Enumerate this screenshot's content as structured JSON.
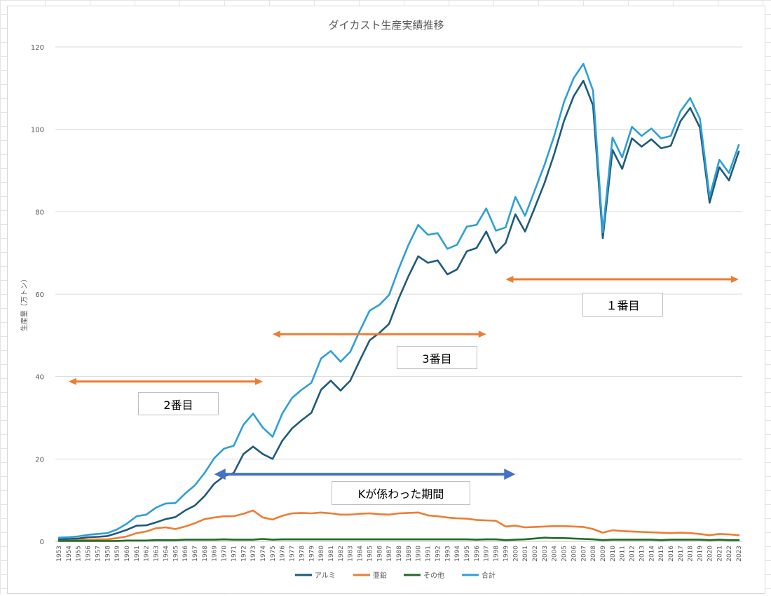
{
  "chart_data": {
    "type": "line",
    "title": "ダイカスト生産実績推移",
    "ylabel": "生産量（万トン）",
    "xlabel": "",
    "ylim": [
      0,
      120
    ],
    "yticks": [
      0,
      20,
      40,
      60,
      80,
      100,
      120
    ],
    "grid": true,
    "legend_position": "bottom",
    "x": [
      "1953",
      "1954",
      "1955",
      "1956",
      "1957",
      "1958",
      "1959",
      "1960",
      "1961",
      "1962",
      "1963",
      "1964",
      "1965",
      "1966",
      "1967",
      "1968",
      "1969",
      "1970",
      "1971",
      "1972",
      "1973",
      "1974",
      "1975",
      "1976",
      "1977",
      "1978",
      "1979",
      "1980",
      "1981",
      "1982",
      "1983",
      "1984",
      "1985",
      "1986",
      "1987",
      "1988",
      "1989",
      "1990",
      "1991",
      "1992",
      "1993",
      "1994",
      "1995",
      "1996",
      "1997",
      "1998",
      "1999",
      "2000",
      "2001",
      "2002",
      "2003",
      "2004",
      "2005",
      "2006",
      "2007",
      "2008",
      "2009",
      "2010",
      "2011",
      "2012",
      "2013",
      "2014",
      "2015",
      "2016",
      "2017",
      "2018",
      "2019",
      "2020",
      "2021",
      "2022",
      "2023"
    ],
    "series": [
      {
        "name": "アルミ",
        "color": "#1f5a7a",
        "values": [
          0.5,
          0.6,
          0.7,
          1.0,
          1.1,
          1.3,
          2.0,
          2.8,
          3.8,
          3.9,
          4.6,
          5.4,
          5.9,
          7.5,
          8.7,
          11.0,
          14.0,
          15.8,
          16.6,
          21.2,
          23.0,
          21.2,
          20.0,
          24.4,
          27.4,
          29.4,
          31.2,
          36.8,
          39.0,
          36.6,
          39.0,
          44.0,
          48.8,
          50.6,
          52.8,
          59.0,
          64.4,
          69.2,
          67.6,
          68.2,
          64.8,
          66.0,
          70.4,
          71.2,
          75.2,
          70.0,
          72.4,
          79.4,
          75.2,
          81.0,
          87.0,
          94.0,
          102.0,
          108.0,
          111.8,
          105.8,
          73.6,
          95.0,
          90.4,
          97.8,
          95.8,
          97.6,
          95.4,
          96.0,
          102.0,
          105.2,
          100.4,
          82.2,
          90.8,
          87.6,
          94.6
        ]
      },
      {
        "name": "亜鉛",
        "color": "#ed7d31",
        "values": [
          0.3,
          0.3,
          0.4,
          0.4,
          0.5,
          0.5,
          0.8,
          1.2,
          2.0,
          2.4,
          3.2,
          3.4,
          3.0,
          3.6,
          4.4,
          5.4,
          5.8,
          6.1,
          6.1,
          6.7,
          7.5,
          5.8,
          5.3,
          6.2,
          6.8,
          6.9,
          6.8,
          7.0,
          6.8,
          6.5,
          6.5,
          6.7,
          6.8,
          6.6,
          6.5,
          6.8,
          6.9,
          7.0,
          6.3,
          6.1,
          5.8,
          5.6,
          5.5,
          5.2,
          5.1,
          5.0,
          3.6,
          3.8,
          3.4,
          3.5,
          3.6,
          3.7,
          3.7,
          3.6,
          3.5,
          3.0,
          2.1,
          2.7,
          2.5,
          2.4,
          2.3,
          2.2,
          2.1,
          2.0,
          2.1,
          2.0,
          1.8,
          1.5,
          1.8,
          1.7,
          1.5
        ]
      },
      {
        "name": "その他",
        "color": "#1e6b23",
        "values": [
          0.1,
          0.1,
          0.1,
          0.1,
          0.1,
          0.1,
          0.1,
          0.2,
          0.2,
          0.2,
          0.3,
          0.3,
          0.3,
          0.4,
          0.4,
          0.4,
          0.4,
          0.5,
          0.4,
          0.4,
          0.4,
          0.6,
          0.4,
          0.5,
          0.5,
          0.5,
          0.5,
          0.5,
          0.5,
          0.5,
          0.5,
          0.5,
          0.5,
          0.5,
          0.5,
          0.5,
          0.5,
          0.5,
          0.5,
          0.5,
          0.5,
          0.5,
          0.5,
          0.4,
          0.5,
          0.5,
          0.3,
          0.4,
          0.5,
          0.7,
          0.9,
          0.8,
          0.8,
          0.7,
          0.6,
          0.5,
          0.3,
          0.4,
          0.4,
          0.4,
          0.4,
          0.4,
          0.3,
          0.4,
          0.4,
          0.4,
          0.4,
          0.3,
          0.4,
          0.3,
          0.3
        ]
      },
      {
        "name": "合計",
        "color": "#2e9fd6",
        "values": [
          0.9,
          1.0,
          1.2,
          1.6,
          1.8,
          2.0,
          2.9,
          4.3,
          6.1,
          6.5,
          8.2,
          9.2,
          9.3,
          11.6,
          13.6,
          16.6,
          20.2,
          22.5,
          23.2,
          28.3,
          31.0,
          27.6,
          25.4,
          31.0,
          34.8,
          36.8,
          38.5,
          44.4,
          46.2,
          43.6,
          46.0,
          51.2,
          56.0,
          57.4,
          59.8,
          66.2,
          72.0,
          76.8,
          74.4,
          74.8,
          71.0,
          72.0,
          76.4,
          76.8,
          80.8,
          75.4,
          76.2,
          83.6,
          79.0,
          85.2,
          91.4,
          98.4,
          106.6,
          112.4,
          115.9,
          109.4,
          75.0,
          98.0,
          93.2,
          100.6,
          98.4,
          100.2,
          97.8,
          98.4,
          104.4,
          107.6,
          102.6,
          83.6,
          92.6,
          89.4,
          96.2
        ]
      }
    ],
    "annotations": [
      {
        "label": "１番目",
        "from": "1999",
        "to": "2023",
        "level": 63.6,
        "color": "#ed7d31"
      },
      {
        "label": "3番目",
        "from": "1975",
        "to": "1997",
        "level": 50.3,
        "color": "#ed7d31"
      },
      {
        "label": "2番目",
        "from": "1954",
        "to": "1974",
        "level": 38.8,
        "color": "#ed7d31"
      },
      {
        "label": "Kが係わった期間",
        "from": "1969",
        "to": "2000",
        "level": 16.3,
        "color": "#4472c4"
      }
    ]
  }
}
